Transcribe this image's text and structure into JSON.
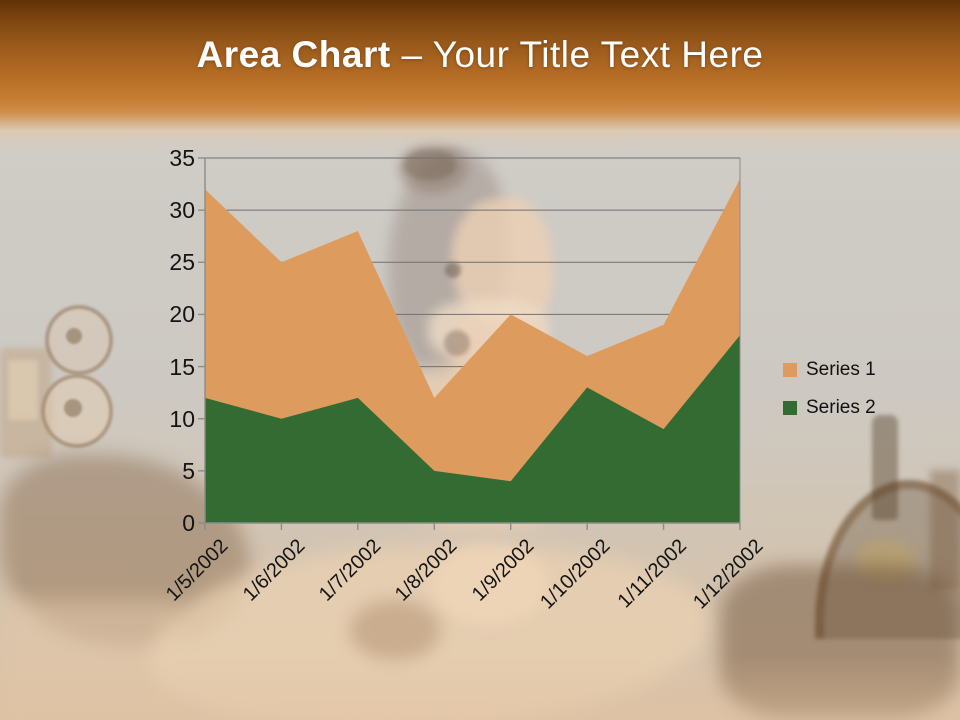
{
  "slide": {
    "title_bold": "Area Chart",
    "title_rest": "– Your Title Text Here"
  },
  "chart_data": {
    "type": "area",
    "stacked": false,
    "title": "",
    "categories": [
      "1/5/2002",
      "1/6/2002",
      "1/7/2002",
      "1/8/2002",
      "1/9/2002",
      "1/10/2002",
      "1/11/2002",
      "1/12/2002"
    ],
    "series": [
      {
        "name": "Series 1",
        "color": "#DE9B5E",
        "values": [
          32,
          25,
          28,
          12,
          20,
          16,
          19,
          33
        ]
      },
      {
        "name": "Series 2",
        "color": "#346B33",
        "values": [
          12,
          10,
          12,
          5,
          4,
          13,
          9,
          18
        ]
      }
    ],
    "ylim": [
      0,
      35
    ],
    "yticks": [
      0,
      5,
      10,
      15,
      20,
      25,
      30,
      35
    ],
    "grid": true,
    "legend_position": "right"
  },
  "colors": {
    "gridline": "#707070",
    "axis": "#8c8c8c",
    "header_top": "#5f3106",
    "header_orange": "#c37c31",
    "background": "#cecbc5",
    "title_text": "#ffffff",
    "label_text": "#141414"
  }
}
